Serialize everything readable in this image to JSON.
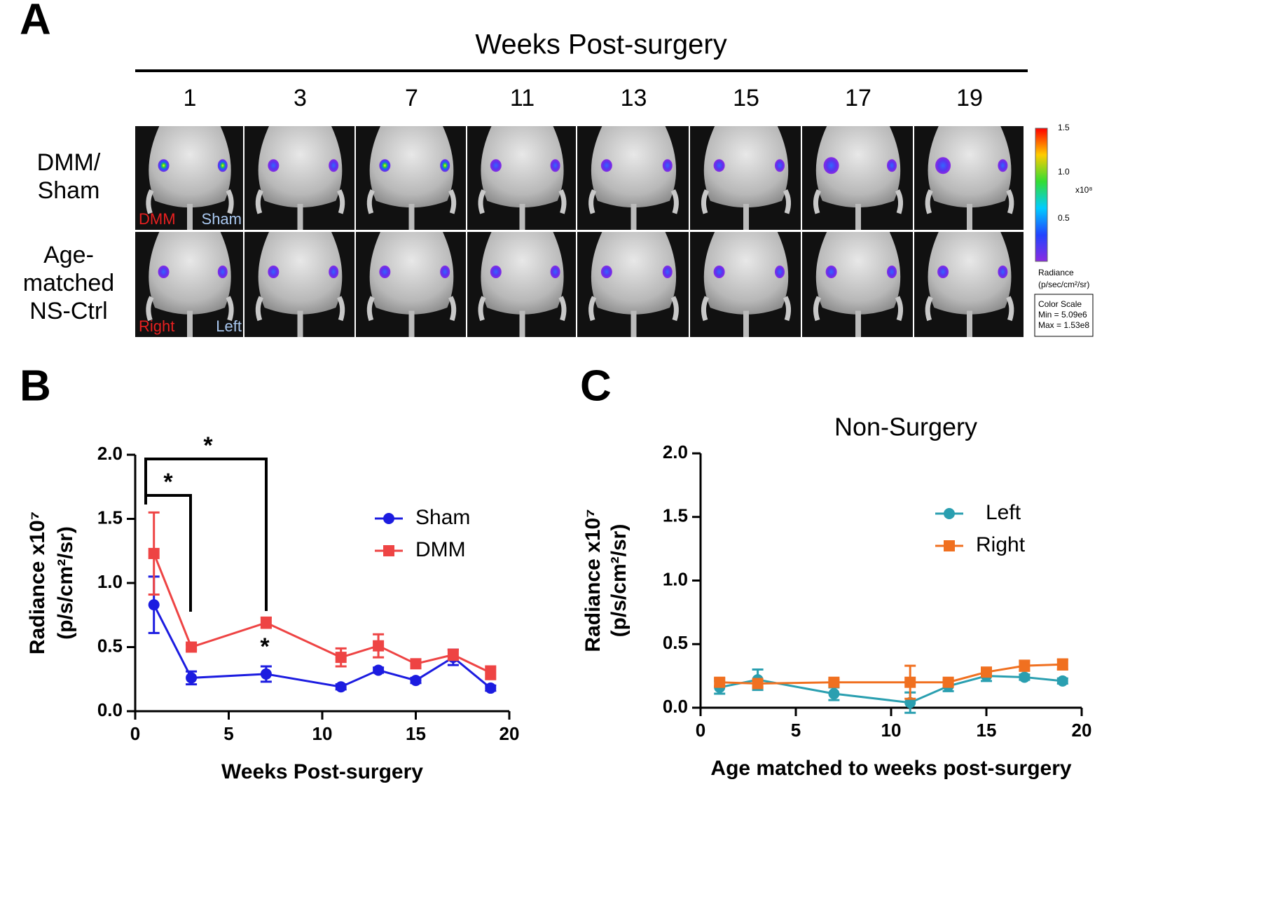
{
  "panel_a": {
    "letter": "A",
    "title": "Weeks Post-surgery",
    "weeks": [
      "1",
      "3",
      "7",
      "11",
      "13",
      "15",
      "17",
      "19"
    ],
    "row_labels": [
      [
        "DMM/",
        "Sham"
      ],
      [
        "Age-",
        "matched",
        "NS-Ctrl"
      ]
    ],
    "image_labels": [
      [
        "DMM",
        "Sham"
      ],
      [
        "Right",
        "Left"
      ]
    ],
    "colorbar": {
      "labels": [
        "1.5",
        "1.0",
        "0.5"
      ],
      "exponent": "x10⁸",
      "unit": [
        "Radiance",
        "(p/sec/cm²/sr)"
      ],
      "box": [
        "Color Scale",
        "Min = 5.09e6",
        "Max = 1.53e8"
      ]
    }
  },
  "chart_data": [
    {
      "panel": "B",
      "type": "line",
      "xlabel": "Weeks Post-surgery",
      "ylabel": [
        "Radiance x10⁷",
        "(p/s/cm²/sr)"
      ],
      "x": [
        1,
        3,
        7,
        11,
        13,
        15,
        17,
        19
      ],
      "series": [
        {
          "name": "Sham",
          "color": "#1c1ce0",
          "marker": "circle",
          "values": [
            0.83,
            0.26,
            0.29,
            0.19,
            0.32,
            0.24,
            0.42,
            0.18
          ],
          "errors": [
            0.22,
            0.05,
            0.06,
            0.02,
            0.02,
            0.02,
            0.06,
            0.02
          ]
        },
        {
          "name": "DMM",
          "color": "#ee4444",
          "marker": "square",
          "values": [
            1.23,
            0.5,
            0.69,
            0.42,
            0.51,
            0.37,
            0.44,
            0.3
          ],
          "errors": [
            0.32,
            0.02,
            0.04,
            0.07,
            0.09,
            0.02,
            0.04,
            0.05
          ]
        }
      ],
      "xlim": [
        0,
        20
      ],
      "xticks": [
        0,
        5,
        10,
        15,
        20
      ],
      "ylim": [
        0,
        2
      ],
      "yticks": [
        {
          "value": 0,
          "label": "0.0"
        },
        {
          "value": 0.5,
          "label": "0.5"
        },
        {
          "value": 1,
          "label": "1.0"
        },
        {
          "value": 1.5,
          "label": "1.5"
        },
        {
          "value": 2,
          "label": "2.0"
        }
      ],
      "annotations": [
        "*",
        "*",
        "*"
      ],
      "legend": "upper right"
    },
    {
      "panel": "C",
      "type": "line",
      "title": "Non-Surgery",
      "xlabel": "Age matched to weeks post-surgery",
      "ylabel": [
        "Radiance x10⁷",
        "(p/s/cm²/sr)"
      ],
      "x": [
        1,
        3,
        7,
        11,
        13,
        15,
        17,
        19
      ],
      "series": [
        {
          "name": "Left",
          "color": "#2a9fb0",
          "marker": "circle",
          "values": [
            0.16,
            0.22,
            0.11,
            0.04,
            0.17,
            0.25,
            0.24,
            0.21
          ],
          "errors": [
            0.05,
            0.08,
            0.05,
            0.08,
            0.04,
            0.04,
            0.02,
            0.02
          ]
        },
        {
          "name": "Right",
          "color": "#f07020",
          "marker": "square",
          "values": [
            0.2,
            0.19,
            0.2,
            0.2,
            0.2,
            0.28,
            0.33,
            0.34
          ],
          "errors": [
            0.03,
            0.03,
            0.02,
            0.13,
            0.02,
            0.02,
            0.04,
            0.04
          ]
        }
      ],
      "xlim": [
        0,
        20
      ],
      "xticks": [
        0,
        5,
        10,
        15,
        20
      ],
      "ylim": [
        0,
        2
      ],
      "yticks": [
        {
          "value": 0,
          "label": "0.0"
        },
        {
          "value": 0.5,
          "label": "0.5"
        },
        {
          "value": 1,
          "label": "1.0"
        },
        {
          "value": 1.5,
          "label": "1.5"
        },
        {
          "value": 2,
          "label": "2.0"
        }
      ],
      "legend": "upper right"
    }
  ]
}
